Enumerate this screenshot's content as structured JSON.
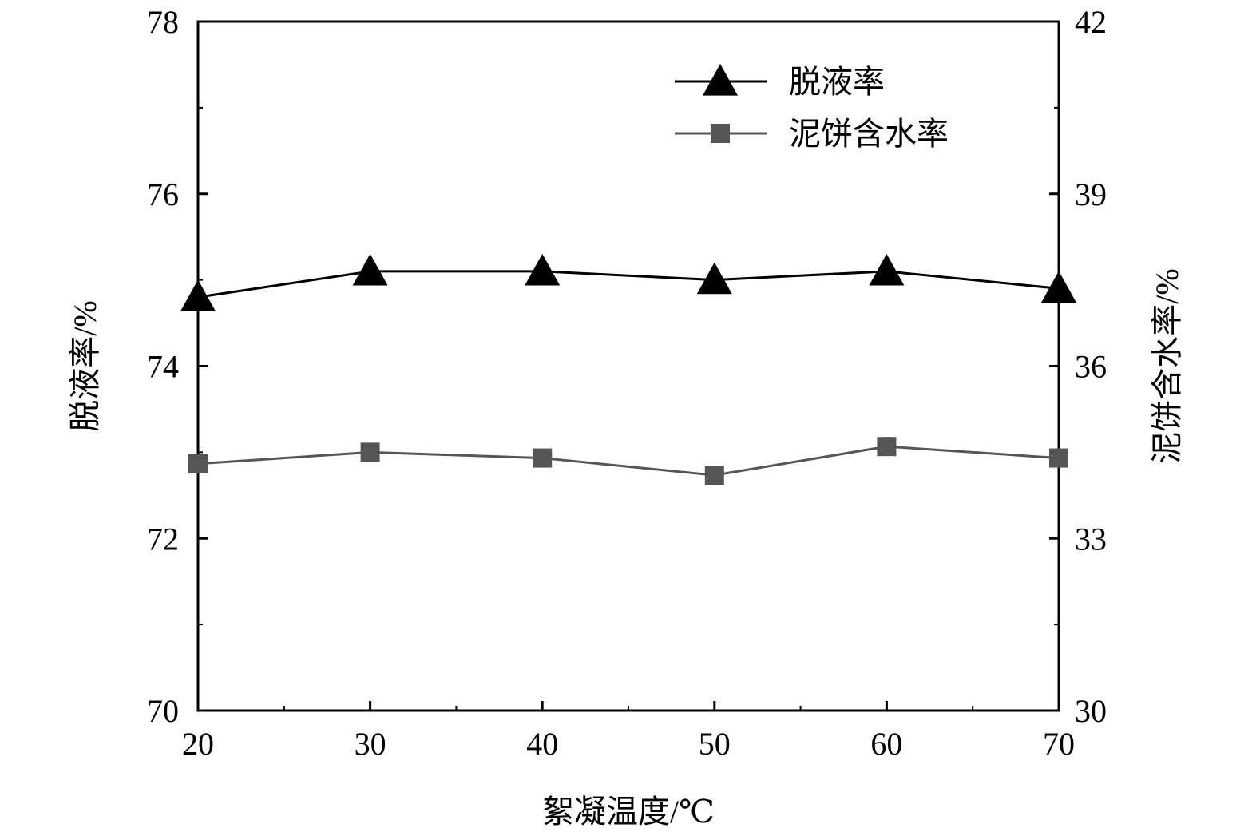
{
  "chart_data": {
    "type": "line",
    "xlabel": "絮凝温度/℃",
    "ylabel_left": "脱液率/%",
    "ylabel_right": "泥饼含水率/%",
    "x": [
      20,
      30,
      40,
      50,
      60,
      70
    ],
    "xlim": [
      20,
      70
    ],
    "x_ticks": [
      20,
      30,
      40,
      50,
      60,
      70
    ],
    "ylim_left": [
      70,
      78
    ],
    "y_ticks_left": [
      70,
      72,
      74,
      76,
      78
    ],
    "ylim_right": [
      30,
      42
    ],
    "y_ticks_right": [
      30,
      33,
      36,
      39,
      42
    ],
    "grid": false,
    "legend_position": "top-right",
    "series": [
      {
        "name": "脱液率",
        "axis": "left",
        "marker": "triangle",
        "color": "#000000",
        "values": [
          74.8,
          75.1,
          75.1,
          75.0,
          75.1,
          74.9
        ]
      },
      {
        "name": "泥饼含水率",
        "axis": "right",
        "marker": "square",
        "color": "#555555",
        "values": [
          34.3,
          34.5,
          34.4,
          34.1,
          34.6,
          34.4
        ]
      }
    ]
  }
}
